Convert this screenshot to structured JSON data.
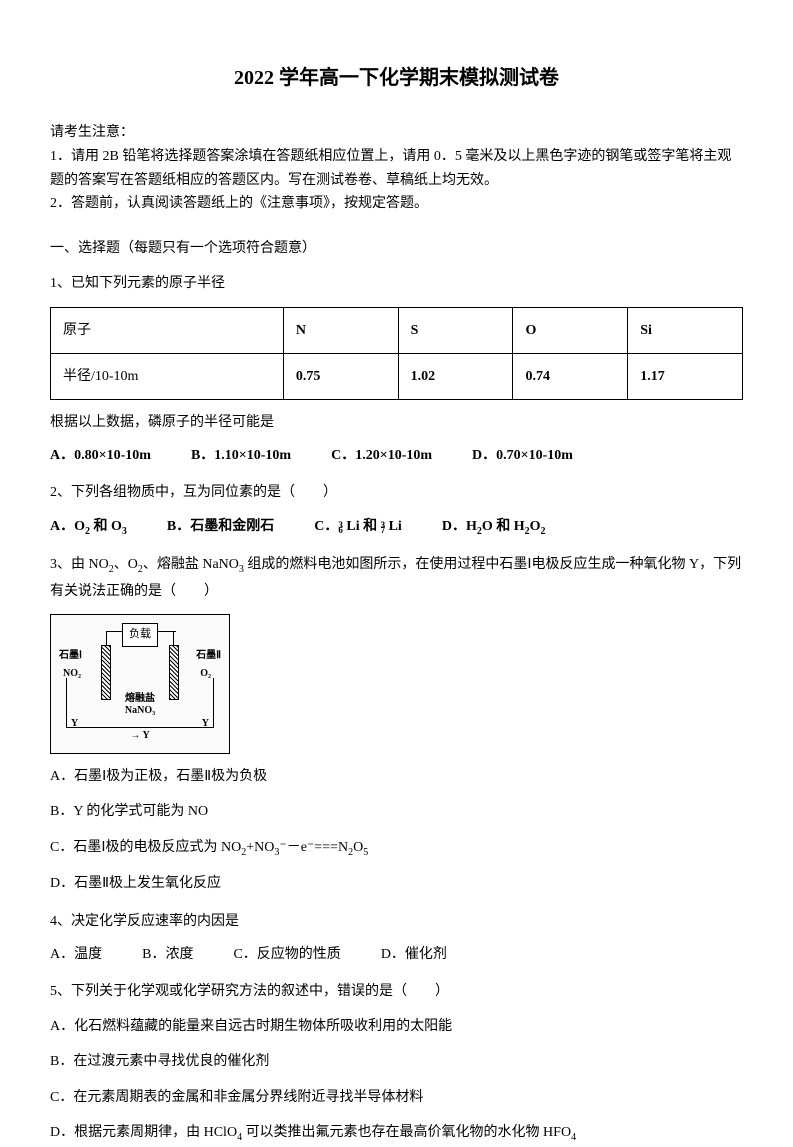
{
  "title": "2022 学年高一下化学期末模拟测试卷",
  "notice_header": "请考生注意：",
  "notice1": "1．请用 2B 铅笔将选择题答案涂填在答题纸相应位置上，请用 0．5 毫米及以上黑色字迹的钢笔或签字笔将主观题的答案写在答题纸相应的答题区内。写在测试卷卷、草稿纸上均无效。",
  "notice2": "2．答题前，认真阅读答题纸上的《注意事项》，按规定答题。",
  "section1": "一、选择题（每题只有一个选项符合题意）",
  "q1": {
    "text": "1、已知下列元素的原子半径",
    "table": {
      "columns": [
        "原子",
        "N",
        "S",
        "O",
        "Si"
      ],
      "row_header": "半径/10-10m",
      "row_values": [
        "0.75",
        "1.02",
        "0.74",
        "1.17"
      ]
    },
    "followup": "根据以上数据，磷原子的半径可能是",
    "options": {
      "A": "0.80×10-10m",
      "B": "1.10×10-10m",
      "C": "1.20×10-10m",
      "D": "0.70×10-10m"
    }
  },
  "q2": {
    "text": "2、下列各组物质中，互为同位素的是（　　）",
    "options": {
      "A_pre": "A．O",
      "A_mid": " 和 O",
      "B": "B．石墨和金刚石",
      "C_pre": "C．",
      "C_li1": "Li 和 ",
      "C_li2": "Li",
      "D_pre": "D．H",
      "D_mid": "O 和 H",
      "D_end": "O"
    }
  },
  "q3": {
    "text_pre": "3、由 NO",
    "text_mid1": "、O",
    "text_mid2": "、熔融盐 NaNO",
    "text_mid3": " 组成的燃料电池如图所示，在使用过程中石墨Ⅰ电极反应生成一种氧化物 Y，下列有关说法正确的是（　　）",
    "diagram": {
      "load": "负载",
      "g1": "石墨Ⅰ",
      "g2": "石墨Ⅱ",
      "no2": "NO₂",
      "o2": "O₂",
      "salt1": "熔融盐",
      "salt2": "NaNO₃",
      "y": "Y"
    },
    "optA": "A．石墨Ⅰ极为正极，石墨Ⅱ极为负极",
    "optB": "B．Y 的化学式可能为 NO",
    "optC_pre": "C．石墨Ⅰ极的电极反应式为 NO",
    "optC_mid1": "+NO",
    "optC_mid2": "⁻－e⁻===N",
    "optC_mid3": "O",
    "optD": "D．石墨Ⅱ极上发生氧化反应"
  },
  "q4": {
    "text": "4、决定化学反应速率的内因是",
    "options": {
      "A": "A．温度",
      "B": "B．浓度",
      "C": "C．反应物的性质",
      "D": "D．催化剂"
    }
  },
  "q5": {
    "text": "5、下列关于化学观或化学研究方法的叙述中，错误的是（　　）",
    "optA": "A．化石燃料蕴藏的能量来自远古时期生物体所吸收利用的太阳能",
    "optB": "B．在过渡元素中寻找优良的催化剂",
    "optC": "C．在元素周期表的金属和非金属分界线附近寻找半导体材料",
    "optD_pre": "D．根据元素周期律，由 HClO",
    "optD_mid": " 可以类推出氟元素也存在最高价氧化物的水化物 HFO"
  }
}
